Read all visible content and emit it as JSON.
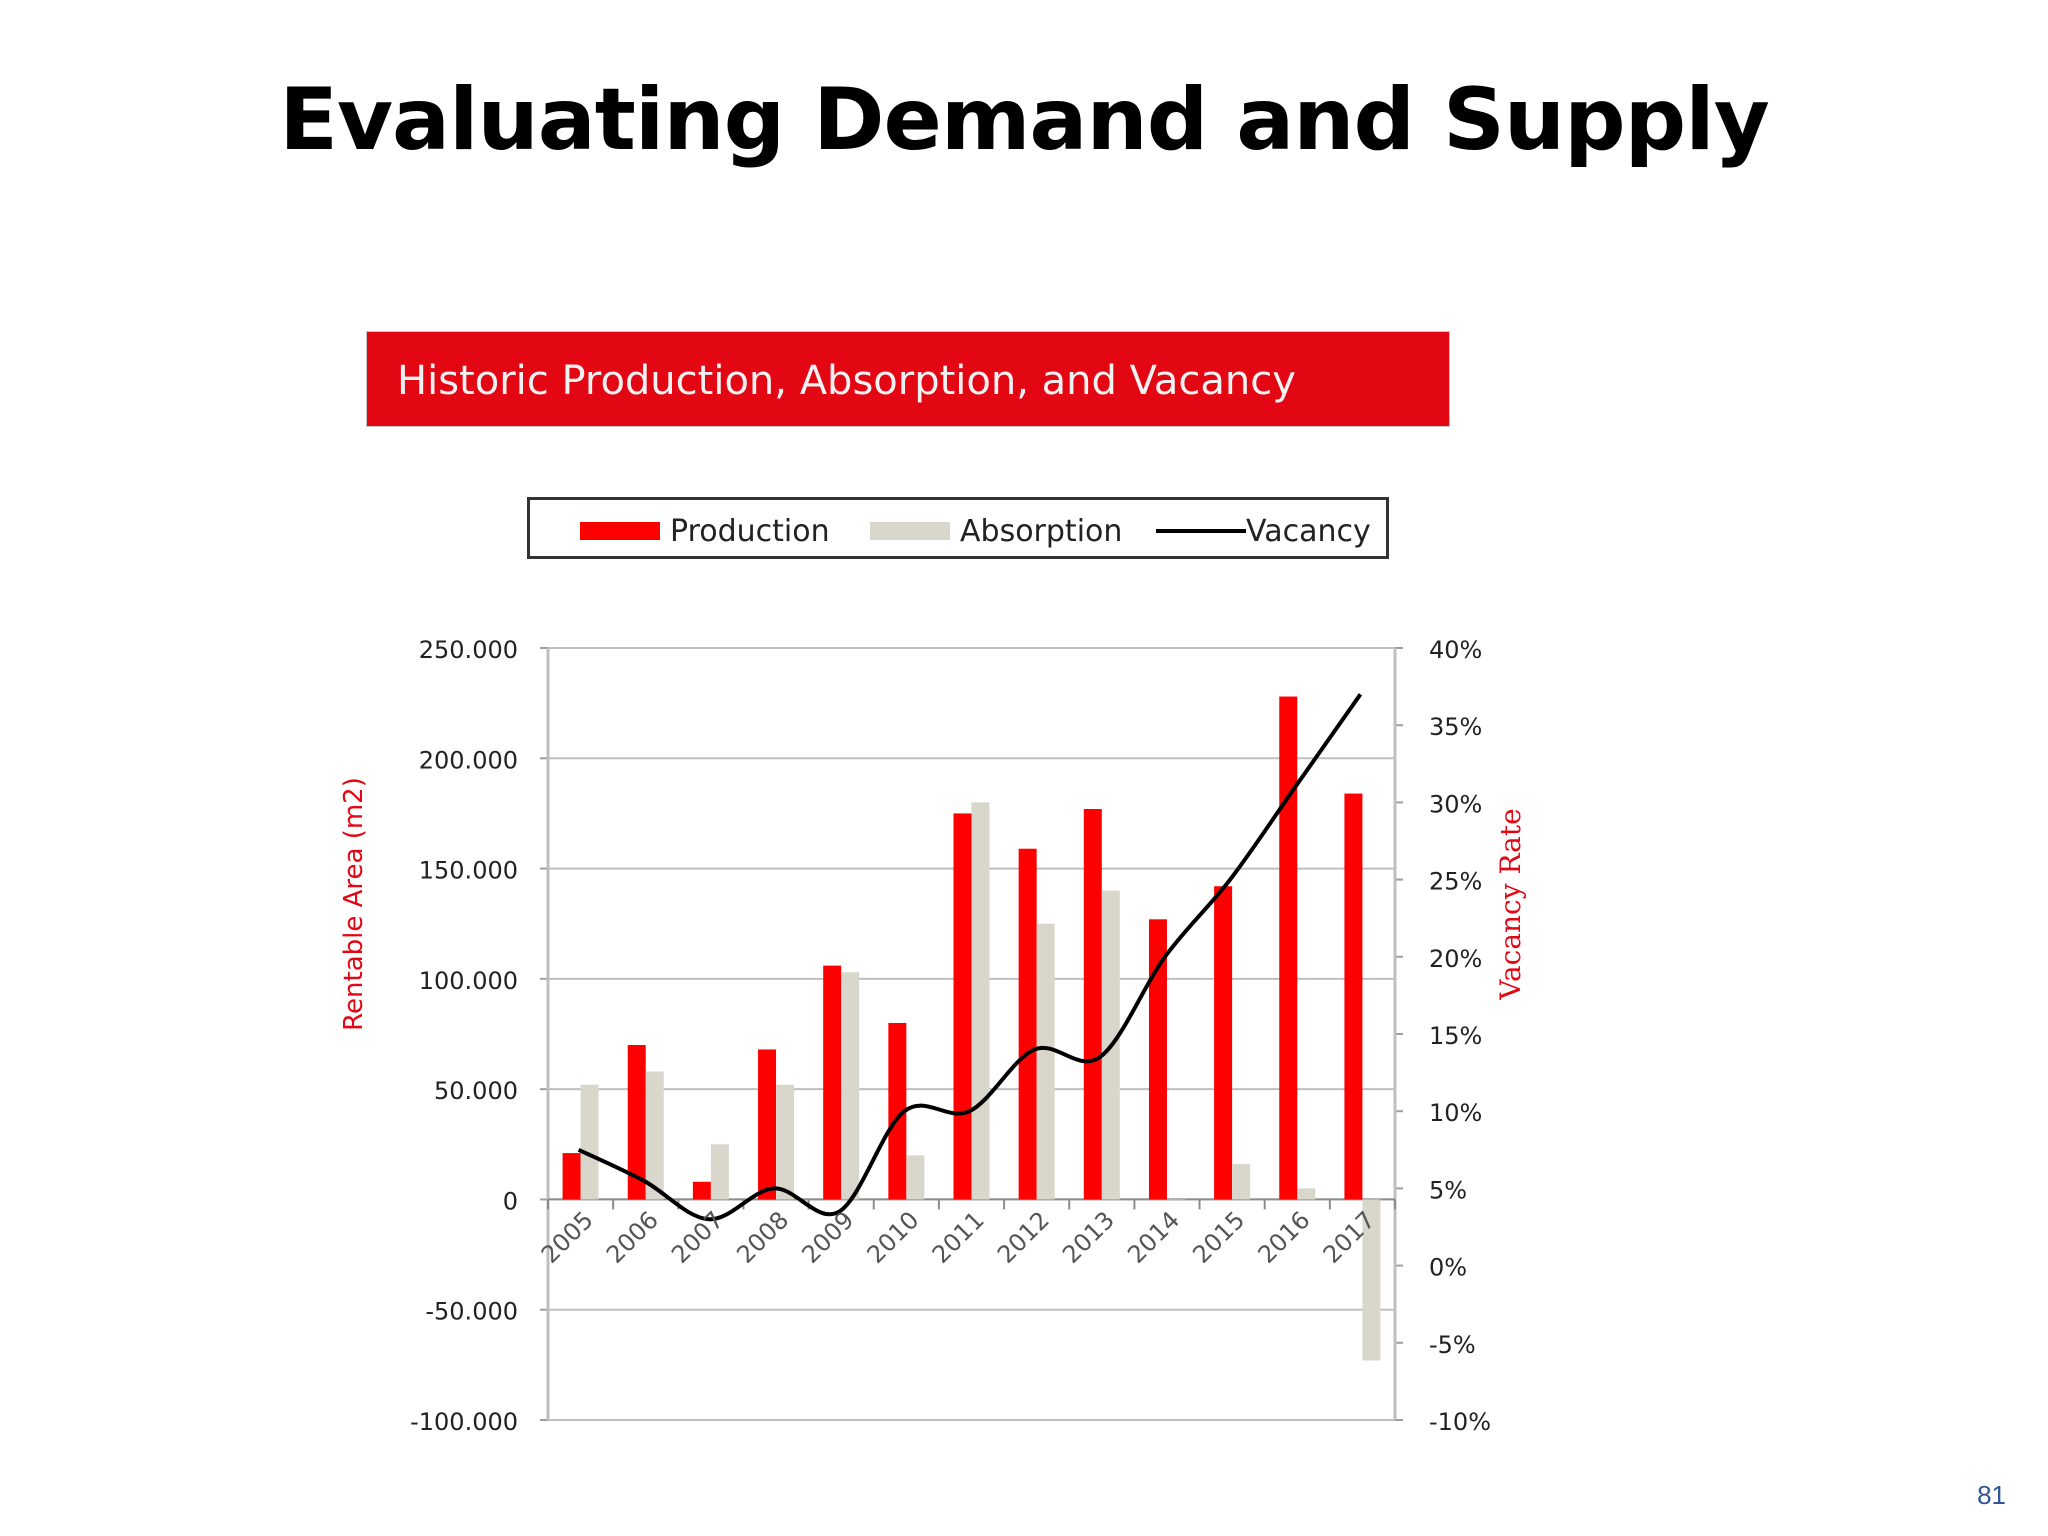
{
  "slide": {
    "title": "Evaluating Demand and Supply",
    "page_number": "81"
  },
  "banner": {
    "title": "Historic Production, Absorption, and Vacancy",
    "color": "#e30613"
  },
  "legend": {
    "production": "Production",
    "absorption": "Absorption",
    "vacancy": "Vacancy"
  },
  "colors": {
    "production": "#ff0000",
    "absorption": "#d9d6cb",
    "vacancy": "#000000",
    "axis_title": "#e30613"
  },
  "chart_data": {
    "type": "bar",
    "categories": [
      "2005",
      "2006",
      "2007",
      "2008",
      "2009",
      "2010",
      "2011",
      "2012",
      "2013",
      "2014",
      "2015",
      "2016",
      "2017"
    ],
    "series": [
      {
        "name": "Production",
        "type": "bar",
        "axis": "left",
        "values": [
          21000,
          70000,
          8000,
          68000,
          106000,
          80000,
          175000,
          159000,
          177000,
          127000,
          142000,
          228000,
          184000
        ]
      },
      {
        "name": "Absorption",
        "type": "bar",
        "axis": "left",
        "values": [
          52000,
          58000,
          25000,
          52000,
          103000,
          20000,
          180000,
          125000,
          140000,
          0,
          16000,
          5000,
          -73000
        ]
      },
      {
        "name": "Vacancy",
        "type": "line",
        "axis": "right",
        "smooth": true,
        "values": [
          7.5,
          5.5,
          3,
          5,
          3.5,
          10,
          10,
          14,
          13.5,
          20,
          25,
          31,
          37
        ]
      }
    ],
    "ylabel": "Rentable Area (m2)",
    "ylabel_right": "Vacancy Rate",
    "ylim": [
      -100000,
      250000
    ],
    "ylim_right": [
      -10,
      40
    ],
    "y_ticks": [
      "-100.000",
      "-50.000",
      "0",
      "50.000",
      "100.000",
      "150.000",
      "200.000",
      "250.000"
    ],
    "y_ticks_right": [
      "-10%",
      "-5%",
      "0%",
      "5%",
      "10%",
      "15%",
      "20%",
      "25%",
      "30%",
      "35%",
      "40%"
    ],
    "grid": true
  }
}
